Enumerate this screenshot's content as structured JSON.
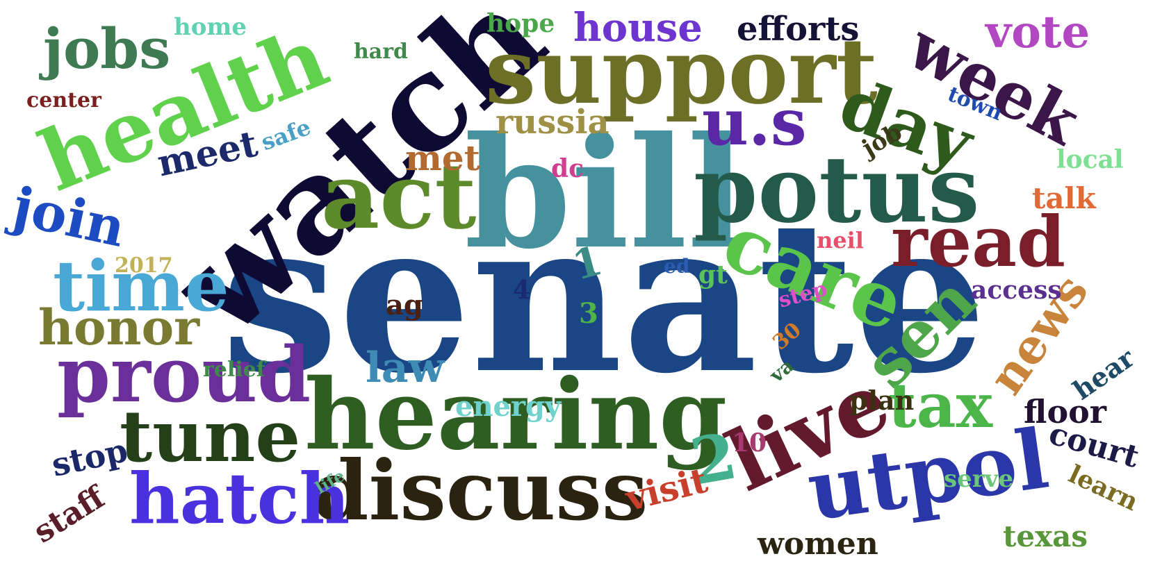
{
  "title": "",
  "words": [
    {
      "text": "senate",
      "color": "#1b4685"
    },
    {
      "text": "bill",
      "color": "#45919d"
    },
    {
      "text": "watch",
      "color": "#0f0a33"
    },
    {
      "text": "support",
      "color": "#6e6f27"
    },
    {
      "text": "hearing",
      "color": "#2f5e22"
    },
    {
      "text": "potus",
      "color": "#245a4a"
    },
    {
      "text": "health",
      "color": "#5fd14b"
    },
    {
      "text": "act",
      "color": "#5d8a2a"
    },
    {
      "text": "care",
      "color": "#5ac54a"
    },
    {
      "text": "discuss",
      "color": "#2b2310"
    },
    {
      "text": "live",
      "color": "#621a2c"
    },
    {
      "text": "utpol",
      "color": "#2b36a8"
    },
    {
      "text": "proud",
      "color": "#6a2f99"
    },
    {
      "text": "tune",
      "color": "#244018"
    },
    {
      "text": "hatch",
      "color": "#4a31e0"
    },
    {
      "text": "time",
      "color": "#4aa8d6"
    },
    {
      "text": "read",
      "color": "#7a1e2a"
    },
    {
      "text": "day",
      "color": "#2e5a1b"
    },
    {
      "text": "week",
      "color": "#3a1748"
    },
    {
      "text": "jobs",
      "color": "#3e7a52"
    },
    {
      "text": "sen",
      "color": "#4fa64a"
    },
    {
      "text": "u.s",
      "color": "#5a27a6"
    },
    {
      "text": "2",
      "color": "#45b08e"
    },
    {
      "text": "tax",
      "color": "#4bb54a"
    },
    {
      "text": "honor",
      "color": "#7a7a32"
    },
    {
      "text": "join",
      "color": "#1d4bc2"
    },
    {
      "text": "news",
      "color": "#c7843a"
    },
    {
      "text": "vote",
      "color": "#b247c2"
    },
    {
      "text": "house",
      "color": "#6d35cf"
    },
    {
      "text": "efforts",
      "color": "#161235"
    },
    {
      "text": "russia",
      "color": "#9e9145"
    },
    {
      "text": "law",
      "color": "#3e8cb5"
    },
    {
      "text": "meet",
      "color": "#1c2a6b"
    },
    {
      "text": "met",
      "color": "#b36a30"
    },
    {
      "text": "visit",
      "color": "#c8402c"
    },
    {
      "text": "women",
      "color": "#2a2512"
    },
    {
      "text": "texas",
      "color": "#58963a"
    },
    {
      "text": "floor",
      "color": "#201230"
    },
    {
      "text": "court",
      "color": "#1c1a46"
    },
    {
      "text": "stop",
      "color": "#1b2868"
    },
    {
      "text": "staff",
      "color": "#5a1e28"
    },
    {
      "text": "energy",
      "color": "#6fd2cc"
    },
    {
      "text": "plan",
      "color": "#3c3012"
    },
    {
      "text": "talk",
      "color": "#e06a36"
    },
    {
      "text": "access",
      "color": "#5b2f8f"
    },
    {
      "text": "hear",
      "color": "#1f4a66"
    },
    {
      "text": "learn",
      "color": "#7a6a22"
    },
    {
      "text": "serve",
      "color": "#6bc67a"
    },
    {
      "text": "local",
      "color": "#7fe093"
    },
    {
      "text": "hope",
      "color": "#4aa84a"
    },
    {
      "text": "home",
      "color": "#5fd2b2"
    },
    {
      "text": "hard",
      "color": "#3f8a4a"
    },
    {
      "text": "center",
      "color": "#7a1e1e"
    },
    {
      "text": "safe",
      "color": "#4a9fc7"
    },
    {
      "text": "town",
      "color": "#1f4ab0"
    },
    {
      "text": "job",
      "color": "#3a3a18"
    },
    {
      "text": "dc",
      "color": "#cf3f8f"
    },
    {
      "text": "ag",
      "color": "#4a2012"
    },
    {
      "text": "gt",
      "color": "#5ac45a"
    },
    {
      "text": "ed",
      "color": "#2a5cb3"
    },
    {
      "text": "neil",
      "color": "#e84f6a"
    },
    {
      "text": "step",
      "color": "#e04fc8"
    },
    {
      "text": "1",
      "color": "#3a8c86"
    },
    {
      "text": "3",
      "color": "#4fb34a"
    },
    {
      "text": "4",
      "color": "#1a2a70"
    },
    {
      "text": "10",
      "color": "#a83a70"
    },
    {
      "text": "30",
      "color": "#d07a2c"
    },
    {
      "text": "va",
      "color": "#2e6a3a"
    },
    {
      "text": "relief",
      "color": "#3f8a4a"
    },
    {
      "text": "2017",
      "color": "#c2b257"
    },
    {
      "text": "life",
      "color": "#5fb38a"
    }
  ]
}
